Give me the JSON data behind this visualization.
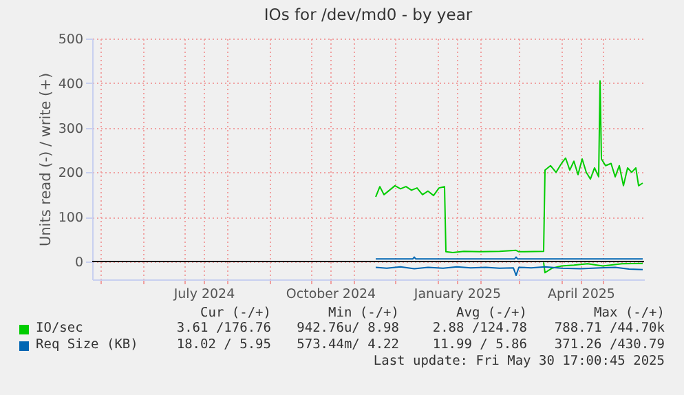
{
  "chart_data": {
    "type": "line",
    "title": "IOs for /dev/md0 - by year",
    "ylabel": "Units read (-) / write (+)",
    "xlim": [
      "2024-04-25",
      "2025-05-31"
    ],
    "xticks": [
      {
        "value": "2024-05-01",
        "label": null
      },
      {
        "value": "2024-06-01",
        "label": null
      },
      {
        "value": "2024-07-01",
        "label": null
      },
      {
        "value": "2024-07-15",
        "label": "July 2024"
      },
      {
        "value": "2024-08-01",
        "label": null
      },
      {
        "value": "2024-09-01",
        "label": null
      },
      {
        "value": "2024-10-01",
        "label": null
      },
      {
        "value": "2024-10-15",
        "label": "October 2024"
      },
      {
        "value": "2024-11-01",
        "label": null
      },
      {
        "value": "2024-12-01",
        "label": null
      },
      {
        "value": "2025-01-01",
        "label": null
      },
      {
        "value": "2025-01-15",
        "label": "January 2025"
      },
      {
        "value": "2025-02-01",
        "label": null
      },
      {
        "value": "2025-03-01",
        "label": null
      },
      {
        "value": "2025-04-01",
        "label": null
      },
      {
        "value": "2025-04-15",
        "label": "April 2025"
      },
      {
        "value": "2025-05-01",
        "label": null
      }
    ],
    "ylim": [
      -40,
      500
    ],
    "yticks": [
      0,
      100,
      200,
      300,
      400,
      500
    ],
    "grid": true,
    "legend": "bottom",
    "series": [
      {
        "name": "IO/sec",
        "color": "#00cc00",
        "x": [
          "2024-11-17",
          "2024-11-20",
          "2024-11-23",
          "2024-11-27",
          "2024-12-01",
          "2024-12-05",
          "2024-12-09",
          "2024-12-13",
          "2024-12-17",
          "2024-12-21",
          "2024-12-25",
          "2024-12-29",
          "2025-01-02",
          "2025-01-06",
          "2025-01-07",
          "2025-01-12",
          "2025-01-20",
          "2025-02-01",
          "2025-02-15",
          "2025-02-27",
          "2025-03-01",
          "2025-03-19",
          "2025-03-20",
          "2025-03-24",
          "2025-03-28",
          "2025-04-01",
          "2025-04-04",
          "2025-04-07",
          "2025-04-10",
          "2025-04-13",
          "2025-04-16",
          "2025-04-19",
          "2025-04-22",
          "2025-04-25",
          "2025-04-28",
          "2025-04-29",
          "2025-04-30",
          "2025-05-03",
          "2025-05-07",
          "2025-05-10",
          "2025-05-13",
          "2025-05-16",
          "2025-05-19",
          "2025-05-22",
          "2025-05-25",
          "2025-05-27",
          "2025-05-30"
        ],
        "values": [
          145,
          168,
          150,
          160,
          170,
          163,
          168,
          160,
          165,
          150,
          158,
          148,
          165,
          168,
          22,
          20,
          23,
          22,
          23,
          25,
          22,
          23,
          205,
          215,
          200,
          220,
          232,
          205,
          225,
          195,
          230,
          200,
          185,
          210,
          190,
          405,
          230,
          215,
          220,
          190,
          215,
          170,
          210,
          200,
          210,
          170,
          176
        ]
      },
      {
        "color": "#00cc00",
        "x": [
          "2025-03-19",
          "2025-03-20",
          "2025-03-25",
          "2025-04-01",
          "2025-04-10",
          "2025-04-20",
          "2025-05-01",
          "2025-05-15",
          "2025-05-30"
        ],
        "values": [
          -2,
          -25,
          -15,
          -10,
          -8,
          -5,
          -10,
          -5,
          -4
        ]
      },
      {
        "name": "Req Size (KB)",
        "color": "#0066b3",
        "x": [
          "2024-11-17",
          "2024-12-14",
          "2024-12-15",
          "2024-12-16",
          "2025-02-26",
          "2025-02-27",
          "2025-02-28",
          "2025-05-30"
        ],
        "values": [
          6,
          6,
          10,
          6,
          6,
          10,
          6,
          6
        ]
      },
      {
        "color": "#0066b3",
        "x": [
          "2024-11-17",
          "2024-11-25",
          "2024-12-05",
          "2024-12-15",
          "2024-12-25",
          "2025-01-05",
          "2025-01-15",
          "2025-01-25",
          "2025-02-05",
          "2025-02-15",
          "2025-02-25",
          "2025-02-27",
          "2025-03-01",
          "2025-03-10",
          "2025-03-20",
          "2025-04-01",
          "2025-04-15",
          "2025-04-29",
          "2025-05-10",
          "2025-05-20",
          "2025-05-30"
        ],
        "values": [
          -13,
          -15,
          -12,
          -16,
          -13,
          -15,
          -12,
          -14,
          -13,
          -15,
          -14,
          -31,
          -13,
          -14,
          -12,
          -15,
          -16,
          -14,
          -13,
          -17,
          -18
        ]
      }
    ],
    "ref_lines": [
      {
        "axis": "y",
        "value": 0,
        "color": "#000000"
      }
    ],
    "annotations": [
      "Cur (-/+)",
      "Min (-/+)",
      "Avg (-/+)",
      "Max (-/+)",
      "3.61 /176.76",
      "942.76u/ 8.98",
      "2.88 /124.78",
      "788.71 /44.70k",
      "18.02 / 5.95",
      "573.44m/ 4.22",
      "11.99 / 5.86",
      "371.26 /430.79",
      "Last update: Fri May 30 17:00:45 2025"
    ]
  }
}
